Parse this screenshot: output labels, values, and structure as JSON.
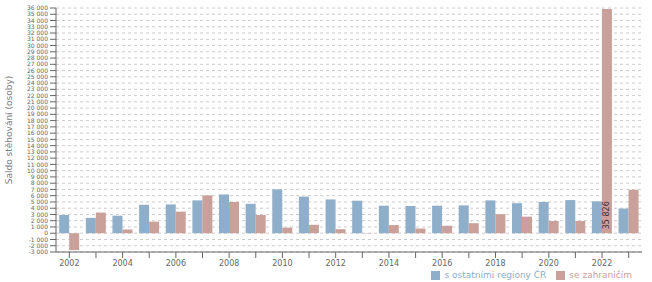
{
  "chart_data": {
    "type": "bar",
    "categories": [
      "2002",
      null,
      "2004",
      null,
      "2006",
      null,
      "2008",
      null,
      "2010",
      null,
      "2012",
      null,
      "2014",
      null,
      "2016",
      null,
      "2018",
      null,
      "2020",
      null,
      "2022",
      null
    ],
    "series": [
      {
        "name": "s ostatními regiony ČR",
        "color": "#8eaec9",
        "values": [
          2900,
          2450,
          2800,
          4550,
          4600,
          5250,
          6200,
          4700,
          7000,
          5850,
          5400,
          5200,
          4400,
          4350,
          4400,
          4450,
          5250,
          4800,
          5000,
          5300,
          5100,
          3950
        ]
      },
      {
        "name": "se zahraničím",
        "color": "#c9a09a",
        "values": [
          -2700,
          3300,
          600,
          1850,
          3450,
          6050,
          5000,
          2900,
          900,
          1350,
          650,
          -50,
          1300,
          750,
          1200,
          1600,
          3050,
          2650,
          1950,
          1950,
          35826,
          6950
        ]
      }
    ],
    "ylabel": "Saldo stěhování (osoby)",
    "ylim": [
      -3000,
      36000
    ],
    "yticks": [
      {
        "value": -3000,
        "label": "-3 000"
      },
      {
        "value": -2000,
        "label": "-2 000"
      },
      {
        "value": -1000,
        "label": "-1 000"
      },
      0,
      {
        "value": 1000,
        "label": "1 000"
      },
      {
        "value": 2000,
        "label": "2 000"
      },
      {
        "value": 3000,
        "label": "3 000"
      },
      {
        "value": 4000,
        "label": "4 000"
      },
      {
        "value": 5000,
        "label": "5 000"
      },
      {
        "value": 6000,
        "label": "6 000"
      },
      {
        "value": 7000,
        "label": "7 000"
      },
      {
        "value": 8000,
        "label": "8 000"
      },
      {
        "value": 9000,
        "label": "9 000"
      },
      {
        "value": 10000,
        "label": "10 000"
      },
      {
        "value": 11000,
        "label": "11 000"
      },
      {
        "value": 12000,
        "label": "12 000"
      },
      {
        "value": 13000,
        "label": "13 000"
      },
      {
        "value": 14000,
        "label": "14 000"
      },
      {
        "value": 15000,
        "label": "15 000"
      },
      {
        "value": 16000,
        "label": "16 000"
      },
      {
        "value": 17000,
        "label": "17 000"
      },
      {
        "value": 18000,
        "label": "18 000"
      },
      {
        "value": 19000,
        "label": "19 000"
      },
      {
        "value": 20000,
        "label": "20 000"
      },
      {
        "value": 21000,
        "label": "21 000"
      },
      {
        "value": 22000,
        "label": "22 000"
      },
      {
        "value": 23000,
        "label": "23 000"
      },
      {
        "value": 24000,
        "label": "24 000"
      },
      {
        "value": 25000,
        "label": "25 000"
      },
      {
        "value": 26000,
        "label": "26 000"
      },
      {
        "value": 27000,
        "label": "27 000"
      },
      {
        "value": 28000,
        "label": "28 000"
      },
      {
        "value": 29000,
        "label": "29 000"
      },
      {
        "value": 30000,
        "label": "30 000"
      },
      {
        "value": 31000,
        "label": "31 000"
      },
      {
        "value": 32000,
        "label": "32 000"
      },
      {
        "value": 33000,
        "label": "33 000"
      },
      {
        "value": 34000,
        "label": "34 000"
      },
      {
        "value": 35000,
        "label": "35 000"
      },
      {
        "value": 36000,
        "label": "36 000"
      }
    ],
    "grid": true,
    "legend": "lower right",
    "annotations": [
      {
        "text": "35 826",
        "category": "2022",
        "series": "se zahraničím"
      }
    ]
  }
}
